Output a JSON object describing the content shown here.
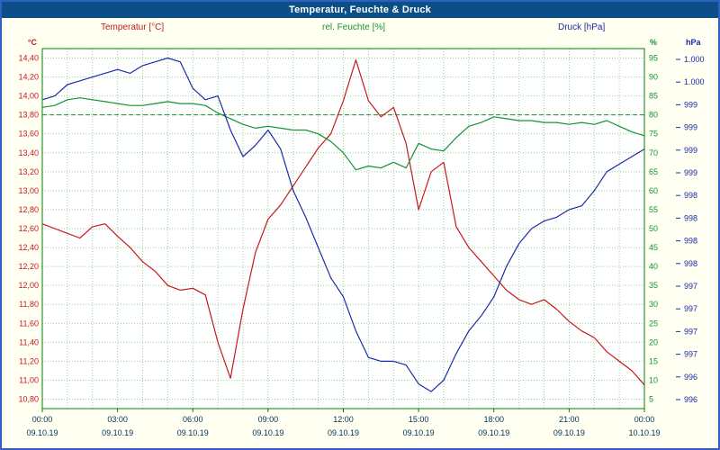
{
  "window": {
    "title": "Temperatur, Feuchte & Druck"
  },
  "legend": {
    "temperature": "Temperatur [°C]",
    "humidity": "rel. Feuchte [%]",
    "pressure": "Druck [hPa]"
  },
  "axes": {
    "left_unit": "°C",
    "humidity_unit": "%",
    "pressure_unit": "hPa",
    "left_ticks": [
      "14,40",
      "14,20",
      "14,00",
      "13,80",
      "13,60",
      "13,40",
      "13,20",
      "13,00",
      "12,80",
      "12,60",
      "12,40",
      "12,20",
      "12,00",
      "11,80",
      "11,60",
      "11,40",
      "11,20",
      "11,00",
      "10,80"
    ],
    "humidity_ticks": [
      "95",
      "90",
      "85",
      "80",
      "75",
      "70",
      "65",
      "60",
      "55",
      "50",
      "45",
      "40",
      "35",
      "30",
      "25",
      "20",
      "15",
      "10",
      "5"
    ],
    "pressure_ticks": [
      "1.000",
      "1.000",
      "999",
      "999",
      "999",
      "999",
      "998",
      "998",
      "998",
      "998",
      "997",
      "997",
      "997",
      "997",
      "996",
      "996"
    ],
    "x_times": [
      "00:00",
      "03:00",
      "06:00",
      "09:00",
      "12:00",
      "15:00",
      "18:00",
      "21:00",
      "00:00"
    ],
    "x_dates": [
      "09.10.19",
      "09.10.19",
      "09.10.19",
      "09.10.19",
      "09.10.19",
      "09.10.19",
      "09.10.19",
      "09.10.19",
      "10.10.19"
    ]
  },
  "colors": {
    "background": "#fffff2",
    "titlebar": "#0b4f86",
    "border": "#2f5fc0",
    "plot_bg": "#ffffff",
    "grid": "#93d193",
    "frame": "#008000",
    "temperature": "#c41a1a",
    "humidity": "#149334",
    "pressure": "#1d2ba8",
    "x_label": "#00325a"
  },
  "chart_data": {
    "type": "line",
    "title": "Temperatur, Feuchte & Druck",
    "x_label_times": [
      "00:00",
      "03:00",
      "06:00",
      "09:00",
      "12:00",
      "15:00",
      "18:00",
      "21:00",
      "00:00"
    ],
    "x_range": [
      0,
      24
    ],
    "grid": {
      "horizontal_step_temp_c": 0.2,
      "vertical_step_hours": 1,
      "style": "dotted-green"
    },
    "legend_position": "top",
    "x_hours": [
      0,
      0.5,
      1,
      1.5,
      2,
      2.5,
      3,
      3.5,
      4,
      4.5,
      5,
      5.5,
      6,
      6.5,
      7,
      7.5,
      8,
      8.5,
      9,
      9.5,
      10,
      10.5,
      11,
      11.5,
      12,
      12.5,
      13,
      13.5,
      14,
      14.5,
      15,
      15.5,
      16,
      16.5,
      17,
      17.5,
      18,
      18.5,
      19,
      19.5,
      20,
      20.5,
      21,
      21.5,
      22,
      22.5,
      23,
      23.5,
      24
    ],
    "series": [
      {
        "name": "Temperatur",
        "unit": "°C",
        "color": "#c41a1a",
        "axis_range": [
          10.7,
          14.5
        ],
        "axis_tick_step": 0.2,
        "values": [
          12.65,
          12.6,
          12.55,
          12.5,
          12.62,
          12.65,
          12.52,
          12.4,
          12.25,
          12.15,
          12.0,
          11.95,
          11.97,
          11.9,
          11.4,
          11.02,
          11.75,
          12.35,
          12.7,
          12.85,
          13.05,
          13.25,
          13.45,
          13.6,
          13.95,
          14.38,
          13.95,
          13.78,
          13.88,
          13.5,
          12.8,
          13.2,
          13.3,
          12.62,
          12.4,
          12.25,
          12.1,
          11.95,
          11.85,
          11.8,
          11.85,
          11.75,
          11.62,
          11.52,
          11.45,
          11.3,
          11.2,
          11.1,
          10.95
        ]
      },
      {
        "name": "rel. Feuchte",
        "unit": "%",
        "color": "#149334",
        "axis_range": [
          2.5,
          97.5
        ],
        "axis_tick_step": 5,
        "reference_line": 80,
        "values": [
          82.0,
          82.5,
          84.0,
          84.5,
          84.0,
          83.5,
          83.0,
          82.5,
          82.5,
          83.0,
          83.5,
          83.0,
          83.0,
          82.5,
          80.5,
          79.0,
          77.5,
          76.5,
          77.0,
          76.5,
          76.0,
          76.0,
          75.0,
          73.0,
          70.0,
          65.5,
          66.5,
          66.0,
          67.5,
          66.0,
          72.5,
          71.0,
          70.5,
          74.0,
          77.0,
          78.0,
          79.5,
          79.0,
          78.5,
          78.5,
          78.0,
          78.0,
          77.5,
          78.0,
          77.5,
          78.5,
          77.0,
          75.5,
          74.5
        ]
      },
      {
        "name": "Druck",
        "unit": "hPa",
        "color": "#1d2ba8",
        "axis_range": [
          995.875,
          1000.625
        ],
        "axis_tick_step": 0.25,
        "values": [
          999.95,
          1000.0,
          1000.15,
          1000.2,
          1000.25,
          1000.3,
          1000.35,
          1000.3,
          1000.4,
          1000.45,
          1000.5,
          1000.45,
          1000.1,
          999.95,
          1000.0,
          999.55,
          999.2,
          999.35,
          999.55,
          999.3,
          998.75,
          998.4,
          998.0,
          997.6,
          997.35,
          996.9,
          996.55,
          996.5,
          996.5,
          996.45,
          996.2,
          996.1,
          996.25,
          996.6,
          996.9,
          997.1,
          997.35,
          997.75,
          998.05,
          998.25,
          998.35,
          998.4,
          998.5,
          998.55,
          998.75,
          999.0,
          999.1,
          999.2,
          999.3
        ]
      }
    ]
  }
}
